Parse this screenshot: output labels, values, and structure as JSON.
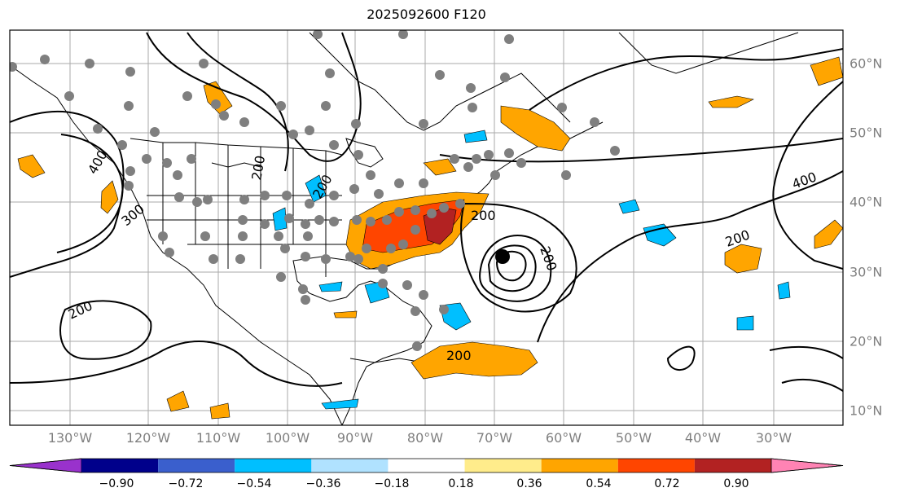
{
  "title": "2025092600 F120",
  "lon_labels": [
    "130°W",
    "120°W",
    "110°W",
    "100°W",
    "90°W",
    "80°W",
    "70°W",
    "60°W",
    "50°W",
    "40°W",
    "30°W"
  ],
  "lat_labels": [
    "60°N",
    "50°N",
    "40°N",
    "30°N",
    "20°N",
    "10°N"
  ],
  "contour_labels": [
    "400",
    "300",
    "200",
    "200",
    "200",
    "200",
    "400",
    "200",
    "200",
    "200"
  ],
  "colorbar": {
    "ticks": [
      "−0.90",
      "−0.72",
      "−0.54",
      "−0.36",
      "−0.18",
      "0.18",
      "0.36",
      "0.54",
      "0.72",
      "0.90"
    ],
    "colors": [
      "#9932cc",
      "#00008b",
      "#3a5fcd",
      "#00bfff",
      "#b0e2ff",
      "#ffffff",
      "#ffec8b",
      "#ffa500",
      "#ff4500",
      "#b22222",
      "#ff83b4"
    ]
  },
  "styles": {
    "station_color": "#7f7f7f",
    "grid_color": "#aaaaaa",
    "contour_color": "#000000"
  }
}
